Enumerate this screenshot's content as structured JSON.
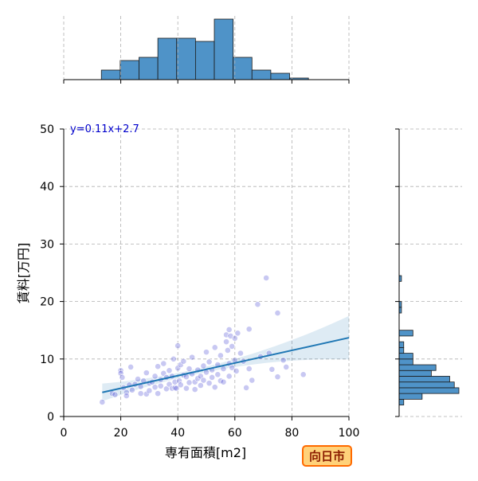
{
  "chart_data": {
    "type": "scatter",
    "xlabel": "専有面積[m2]",
    "ylabel": "賃料[万円]",
    "xlim": [
      0,
      100
    ],
    "ylim": [
      0,
      50
    ],
    "xticks": [
      0,
      20,
      40,
      60,
      80,
      100
    ],
    "yticks": [
      0,
      10,
      20,
      30,
      40,
      50
    ],
    "grid": true,
    "regression": {
      "label": "y=0.11x+2.7",
      "slope": 0.11,
      "intercept": 2.7,
      "x_range": [
        13.5,
        100
      ]
    },
    "badge": "向日市",
    "colors": {
      "accent": "#1f77b4",
      "point": "#3a3ad0",
      "bar": "#4f93c8",
      "badge_fill": "#ffd27a",
      "badge_stroke": "#ff6a00"
    },
    "points": [
      [
        13.5,
        2.5
      ],
      [
        17,
        4.0
      ],
      [
        18,
        3.8
      ],
      [
        20,
        8.0
      ],
      [
        20,
        7.5
      ],
      [
        20.5,
        6.8
      ],
      [
        21,
        5.0
      ],
      [
        22,
        4.2
      ],
      [
        22,
        3.6
      ],
      [
        23,
        5.5
      ],
      [
        23.5,
        8.6
      ],
      [
        24,
        4.6
      ],
      [
        25,
        5.6
      ],
      [
        26,
        6.5
      ],
      [
        27,
        5.2
      ],
      [
        27,
        4.0
      ],
      [
        28,
        6.2
      ],
      [
        29,
        7.6
      ],
      [
        29,
        3.9
      ],
      [
        30,
        4.5
      ],
      [
        30,
        5.8
      ],
      [
        31,
        6.0
      ],
      [
        32,
        5.1
      ],
      [
        32,
        7.0
      ],
      [
        33,
        8.7
      ],
      [
        33,
        4.0
      ],
      [
        34,
        6.4
      ],
      [
        34,
        5.3
      ],
      [
        35,
        7.5
      ],
      [
        35,
        9.2
      ],
      [
        36,
        6.8
      ],
      [
        36,
        4.8
      ],
      [
        37,
        8.0
      ],
      [
        37,
        5.6
      ],
      [
        38,
        7.0
      ],
      [
        38,
        4.9
      ],
      [
        38.5,
        10.0
      ],
      [
        39,
        6.0
      ],
      [
        39,
        5.0
      ],
      [
        39.5,
        4.9
      ],
      [
        40,
        12.3
      ],
      [
        40,
        8.4
      ],
      [
        40.5,
        6.2
      ],
      [
        41,
        9.0
      ],
      [
        41,
        5.5
      ],
      [
        42,
        7.2
      ],
      [
        42,
        9.6
      ],
      [
        43,
        4.9
      ],
      [
        43,
        6.9
      ],
      [
        44,
        8.3
      ],
      [
        44,
        5.9
      ],
      [
        45,
        7.4
      ],
      [
        45,
        10.3
      ],
      [
        46,
        6.0
      ],
      [
        46,
        4.7
      ],
      [
        47,
        8.1
      ],
      [
        47,
        6.6
      ],
      [
        48,
        7.0
      ],
      [
        48,
        5.4
      ],
      [
        49,
        8.8
      ],
      [
        49,
        6.3
      ],
      [
        50,
        11.2
      ],
      [
        50,
        7.7
      ],
      [
        51,
        5.8
      ],
      [
        51,
        9.5
      ],
      [
        52,
        6.8
      ],
      [
        52,
        8.1
      ],
      [
        53,
        12.0
      ],
      [
        53,
        5.1
      ],
      [
        54,
        9.0
      ],
      [
        54,
        7.3
      ],
      [
        55,
        6.2
      ],
      [
        55,
        10.6
      ],
      [
        56,
        8.3
      ],
      [
        56,
        6.0
      ],
      [
        57,
        14.2
      ],
      [
        57,
        13.0
      ],
      [
        57.5,
        11.5
      ],
      [
        58,
        15.1
      ],
      [
        58,
        9.2
      ],
      [
        58,
        7.0
      ],
      [
        58.5,
        14.0
      ],
      [
        59,
        12.2
      ],
      [
        59,
        8.5
      ],
      [
        60,
        13.6
      ],
      [
        60,
        9.8
      ],
      [
        60.5,
        7.9
      ],
      [
        61,
        14.5
      ],
      [
        62,
        11.0
      ],
      [
        63,
        9.6
      ],
      [
        64,
        5.0
      ],
      [
        65,
        15.2
      ],
      [
        65,
        8.3
      ],
      [
        66,
        6.3
      ],
      [
        68,
        19.5
      ],
      [
        69,
        10.4
      ],
      [
        71,
        24.1
      ],
      [
        72,
        11.0
      ],
      [
        73,
        8.2
      ],
      [
        75,
        18.0
      ],
      [
        75,
        6.9
      ],
      [
        77,
        9.8
      ],
      [
        78,
        8.6
      ],
      [
        84,
        7.3
      ]
    ],
    "x_hist": {
      "bin_edges": [
        0,
        6.6,
        13.2,
        19.8,
        26.4,
        33.0,
        39.6,
        46.2,
        52.8,
        59.4,
        66.0,
        72.6,
        79.2,
        85.8,
        92.4,
        99.0
      ],
      "counts": [
        0,
        0,
        3,
        6,
        7,
        13,
        13,
        12,
        19,
        7,
        3,
        2,
        0.5,
        0,
        0
      ]
    },
    "y_hist": {
      "bins": [
        [
          2.0,
          3.0,
          1
        ],
        [
          3.0,
          4.0,
          5
        ],
        [
          4.0,
          5.0,
          13
        ],
        [
          5.0,
          6.0,
          12
        ],
        [
          6.0,
          7.0,
          11
        ],
        [
          7.0,
          8.0,
          7
        ],
        [
          8.0,
          9.0,
          8
        ],
        [
          9.0,
          10.0,
          3
        ],
        [
          10.0,
          11.0,
          3
        ],
        [
          11.0,
          12.0,
          1
        ],
        [
          12.0,
          13.0,
          1
        ],
        [
          13.0,
          14.0,
          0
        ],
        [
          14.0,
          15.0,
          3
        ],
        [
          18.0,
          19.0,
          0.5
        ],
        [
          19.0,
          20.0,
          0.5
        ],
        [
          23.5,
          24.5,
          0.5
        ]
      ]
    }
  }
}
